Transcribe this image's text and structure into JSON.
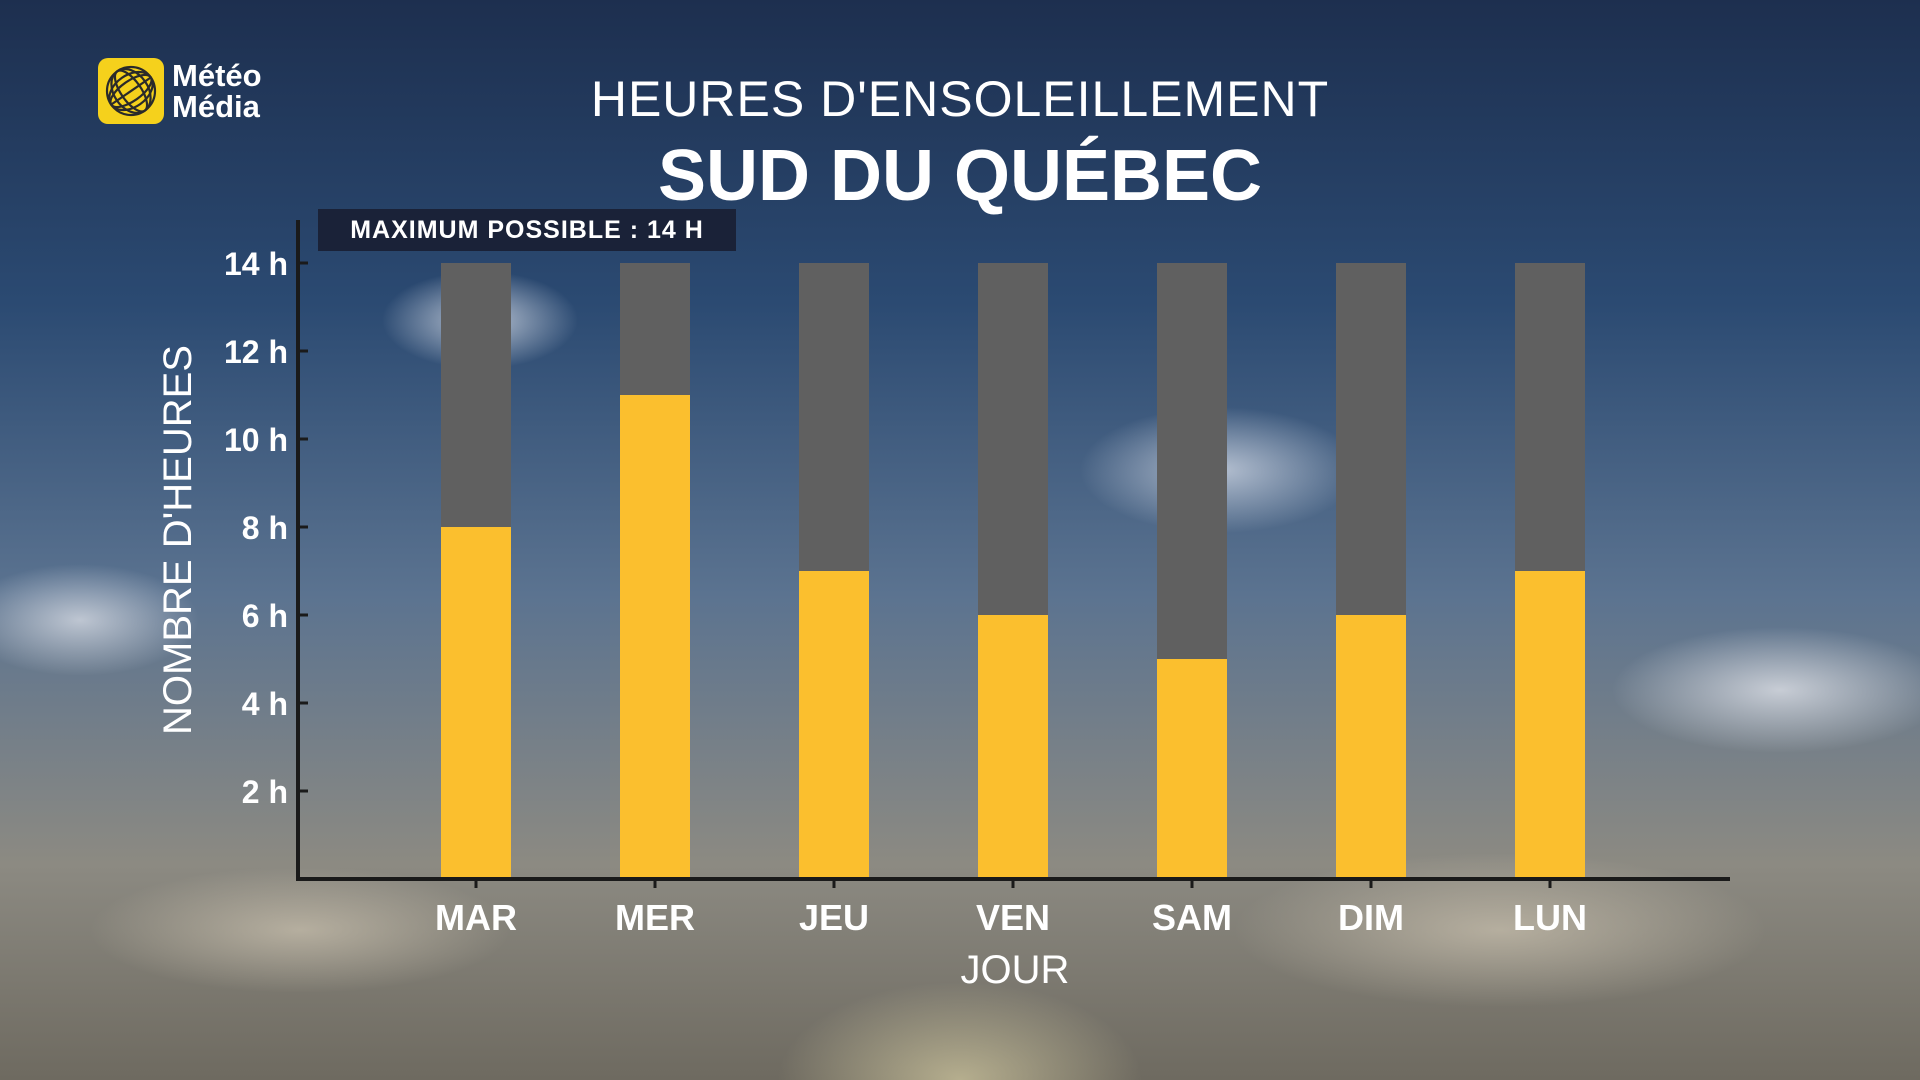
{
  "brand": {
    "logo_line1": "Météo",
    "logo_line2": "Média",
    "logo_color": "#f5d11c"
  },
  "title": "HEURES D'ENSOLEILLEMENT",
  "subtitle": "SUD DU QUÉBEC",
  "badge": "MAXIMUM POSSIBLE : 14 H",
  "colors": {
    "sun": "#fbbf2e",
    "possible": "#606060",
    "axis": "#1a1a1a"
  },
  "chart_data": {
    "type": "bar",
    "title": "HEURES D'ENSOLEILLEMENT",
    "subtitle": "SUD DU QUÉBEC",
    "xlabel": "JOUR",
    "ylabel": "NOMBRE D'HEURES",
    "categories": [
      "MAR",
      "MER",
      "JEU",
      "VEN",
      "SAM",
      "DIM",
      "LUN"
    ],
    "max_possible": 14,
    "values": [
      8,
      11,
      7,
      6,
      5,
      6,
      7
    ],
    "ylim": [
      0,
      14
    ],
    "yticks": [
      2,
      4,
      6,
      8,
      10,
      12,
      14
    ],
    "ytick_labels": [
      "2 h",
      "4 h",
      "6 h",
      "8 h",
      "10 h",
      "12 h",
      "14 h"
    ],
    "grid": false,
    "legend": "none"
  }
}
